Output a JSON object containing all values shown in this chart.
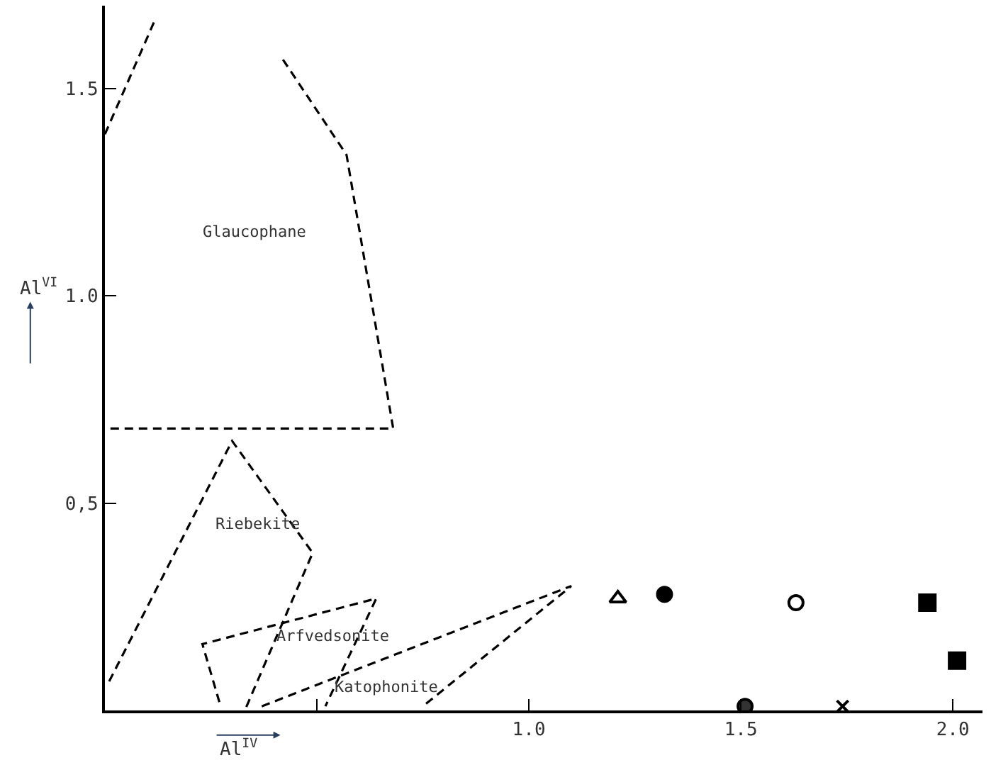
{
  "chart_data": {
    "type": "scatter",
    "xlabel": "Al$^{IV}$",
    "ylabel": "Al$^{VI}$",
    "xlim": [
      0,
      2.07
    ],
    "ylim": [
      0,
      1.7
    ],
    "xticks": [
      {
        "value": 0.5,
        "label": null
      },
      {
        "value": 1.0,
        "label": "1.0"
      },
      1.5,
      {
        "value": 2.0,
        "label": "2.0"
      }
    ],
    "yticks": [
      {
        "value": 0.5,
        "label": "0,5"
      },
      {
        "value": 1.0,
        "label": "1.0"
      },
      1.5
    ],
    "series": [
      {
        "type": "line",
        "line_style": "dashed",
        "marker": "none",
        "color": "#000000",
        "x": [
          0.0,
          0.12
        ],
        "values": [
          1.39,
          1.67
        ]
      },
      {
        "type": "line",
        "line_style": "dashed",
        "marker": "none",
        "color": "#000000",
        "x": [
          0.42,
          0.57,
          0.68,
          0.01
        ],
        "values": [
          1.57,
          1.34,
          0.68,
          0.68
        ]
      },
      {
        "type": "line",
        "line_style": "dashed",
        "marker": "none",
        "color": "#000000",
        "x": [
          0.01,
          0.3,
          0.49,
          0.33
        ],
        "values": [
          0.07,
          0.65,
          0.38,
          0.0
        ]
      },
      {
        "type": "line",
        "line_style": "dashed",
        "marker": "none",
        "color": "#000000",
        "x": [
          0.27,
          0.23,
          0.64,
          0.52
        ],
        "values": [
          0.02,
          0.16,
          0.27,
          0.01
        ]
      },
      {
        "type": "line",
        "line_style": "dashed",
        "marker": "none",
        "color": "#000000",
        "x": [
          0.37,
          1.1,
          0.75
        ],
        "values": [
          0.01,
          0.3,
          0.01
        ]
      },
      {
        "marker": "triangle",
        "color": "#ffffff",
        "x": [
          1.21
        ],
        "values": [
          0.27
        ]
      },
      {
        "marker": "circle",
        "color": "#000000",
        "x": [
          1.32
        ],
        "values": [
          0.28
        ]
      },
      {
        "marker": "circle",
        "color": "#ffffff",
        "x": [
          1.63
        ],
        "values": [
          0.26
        ]
      },
      {
        "marker": "square",
        "color": "#000000",
        "x": [
          1.94,
          2.01
        ],
        "values": [
          0.26,
          0.12
        ]
      },
      {
        "marker": "circle",
        "color": "#333333",
        "x": [
          1.51
        ],
        "values": [
          0.01
        ]
      },
      {
        "marker": "cross",
        "color": "#000000",
        "x": [
          1.74
        ],
        "values": [
          0.01
        ]
      }
    ],
    "annotations": [
      "Glaucophane",
      "Riebekite",
      "Arfvedsonite",
      "Katophonite"
    ]
  }
}
